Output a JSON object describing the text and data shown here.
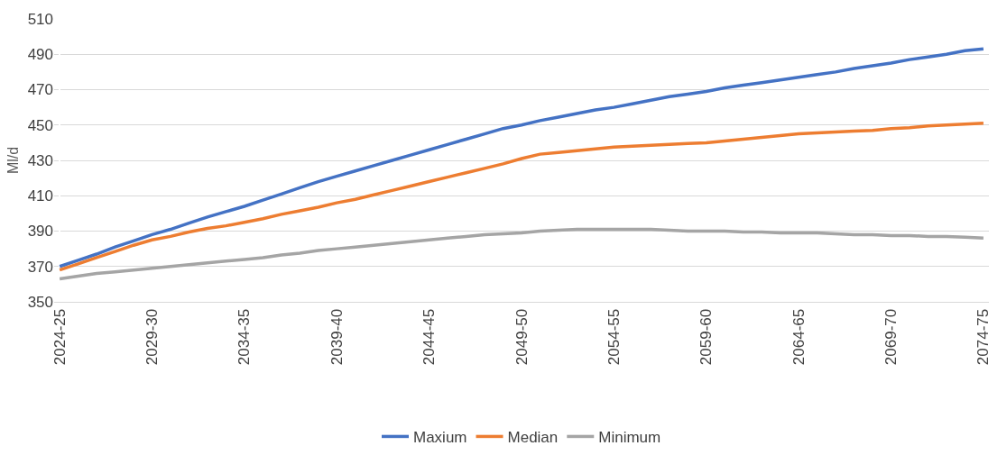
{
  "chart_data": {
    "type": "line",
    "ylabel": "Ml/d",
    "categories": [
      "2024-25",
      null,
      null,
      null,
      null,
      "2029-30",
      null,
      null,
      null,
      null,
      "2034-35",
      null,
      null,
      null,
      null,
      "2039-40",
      null,
      null,
      null,
      null,
      "2044-45",
      null,
      null,
      null,
      null,
      "2049-50",
      null,
      null,
      null,
      null,
      "2054-55",
      null,
      null,
      null,
      null,
      "2059-60",
      null,
      null,
      null,
      null,
      "2064-65",
      null,
      null,
      null,
      null,
      "2069-70",
      null,
      null,
      null,
      null,
      "2074-75"
    ],
    "series": [
      {
        "name": "Maxium",
        "color": "#4472c4",
        "values": [
          370,
          373.5,
          377,
          381,
          384.5,
          388,
          391,
          394.5,
          398,
          401,
          404,
          407.5,
          411,
          414.5,
          418,
          421,
          424,
          427,
          430,
          433,
          436,
          439,
          442,
          445,
          448,
          450,
          452.5,
          454.5,
          456.5,
          458.5,
          460,
          462,
          464,
          466,
          467.5,
          469,
          471,
          472.5,
          474,
          475.5,
          477,
          478.5,
          480,
          482,
          483.5,
          485,
          487,
          488.5,
          490,
          492,
          493
        ]
      },
      {
        "name": "Median",
        "color": "#ed7d31",
        "values": [
          368,
          371.5,
          375,
          378.5,
          382,
          385,
          387,
          389.5,
          391.5,
          393,
          395,
          397,
          399.5,
          401.5,
          403.5,
          406,
          408,
          410.5,
          413,
          415.5,
          418,
          420.5,
          423,
          425.5,
          428,
          431,
          433.5,
          434.5,
          435.5,
          436.5,
          437.5,
          438,
          438.5,
          439,
          439.5,
          440,
          441,
          442,
          443,
          444,
          445,
          445.5,
          446,
          446.5,
          447,
          448,
          448.5,
          449.5,
          450,
          450.5,
          451
        ]
      },
      {
        "name": "Minimum",
        "color": "#a5a5a5",
        "values": [
          363,
          364.5,
          366,
          367,
          368,
          369,
          370,
          371,
          372,
          373,
          374,
          375,
          376.5,
          377.5,
          379,
          380,
          381,
          382,
          383,
          384,
          385,
          386,
          387,
          388,
          388.5,
          389,
          390,
          390.5,
          391,
          391,
          391,
          391,
          391,
          390.5,
          390,
          390,
          390,
          389.5,
          389.5,
          389,
          389,
          389,
          388.5,
          388,
          388,
          387.5,
          387.5,
          387,
          387,
          386.5,
          386
        ]
      }
    ],
    "ylim": [
      350,
      510
    ],
    "yticks": [
      350,
      370,
      390,
      410,
      430,
      450,
      470,
      490,
      510
    ],
    "grid": "y",
    "legend": "bottom",
    "marker": "none",
    "line_style": "solid"
  }
}
